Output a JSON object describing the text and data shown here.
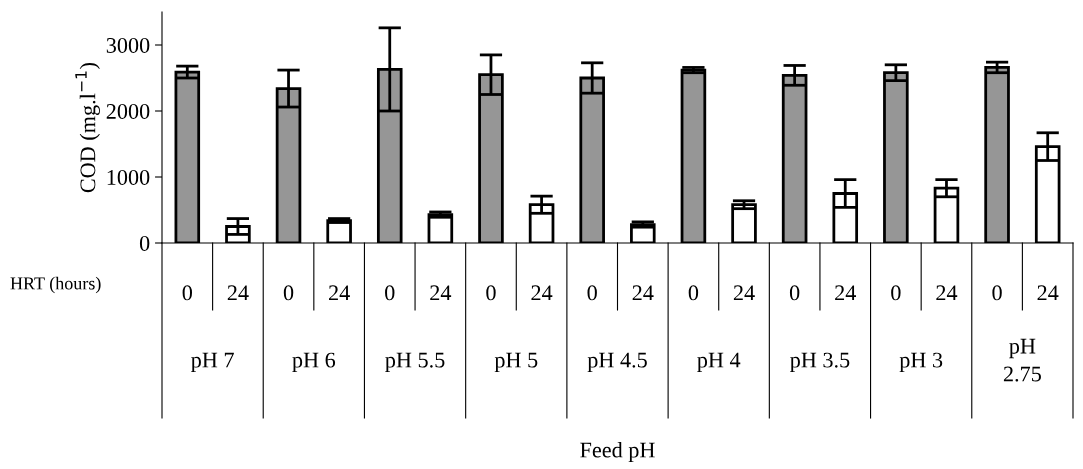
{
  "chart_data": {
    "type": "bar",
    "ylabel": "COD (mg.l$^{−1}$)",
    "categories": [
      "0",
      "24",
      "0",
      "24",
      "0",
      "24",
      "0",
      "24",
      "0",
      "24",
      "0",
      "24",
      "0",
      "24",
      "0",
      "24",
      "0",
      "24"
    ],
    "values": [
      2590,
      250,
      2340,
      340,
      2630,
      430,
      2550,
      580,
      2500,
      280,
      2620,
      580,
      2540,
      750,
      2580,
      830,
      2660,
      1460
    ],
    "errors": [
      90,
      120,
      280,
      30,
      630,
      40,
      300,
      130,
      230,
      40,
      40,
      60,
      150,
      210,
      120,
      130,
      80,
      210
    ],
    "colors": [
      "#969696",
      "#ffffff",
      "#969696",
      "#ffffff",
      "#969696",
      "#ffffff",
      "#969696",
      "#ffffff",
      "#969696",
      "#ffffff",
      "#969696",
      "#ffffff",
      "#969696",
      "#ffffff",
      "#969696",
      "#ffffff",
      "#969696",
      "#ffffff"
    ],
    "ylim": [
      0,
      3500
    ],
    "yticks": [
      0,
      1000,
      2000,
      3000
    ],
    "grid": false,
    "annotations": [
      "HRT (hours)",
      "pH 7",
      "pH 6",
      "pH 5.5",
      "pH 5",
      "pH 4.5",
      "pH 4",
      "pH 3.5",
      "pH 3",
      "pH\n2.75",
      "Feed pH"
    ]
  }
}
